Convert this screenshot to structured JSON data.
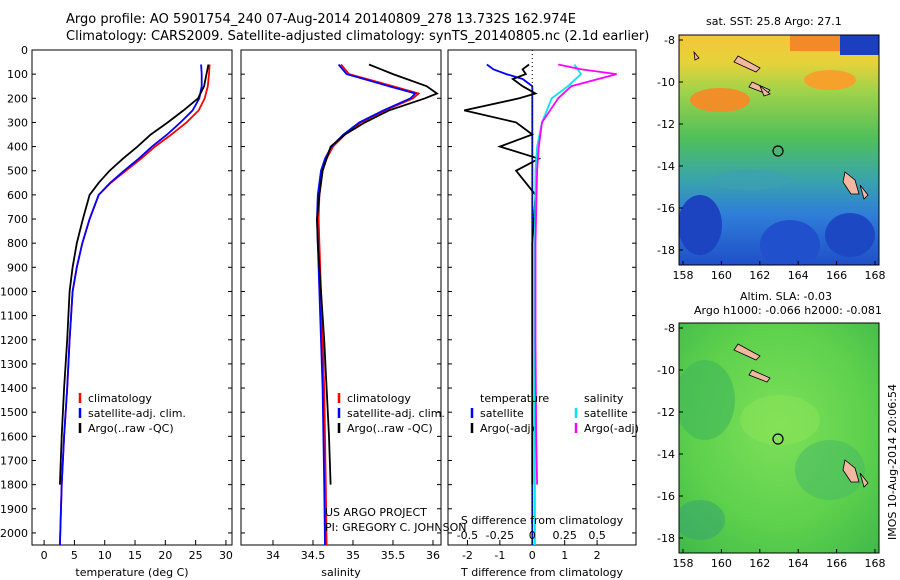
{
  "header": {
    "line1": "Argo profile: AO 5901754_240 07-Aug-2014 20140809_278 13.732S 162.974E",
    "line2": "Climatology: CARS2009. Satellite-adjusted climatology: synTS_20140805.nc (2.1d earlier)"
  },
  "maps": {
    "sst_title": "sat. SST: 25.8 Argo: 27.1",
    "sla_title_1": "Altim. SLA: -0.03",
    "sla_title_2": "Argo h1000: -0.066 h2000: -0.081",
    "lat_ticks": [
      "-8",
      "-10",
      "-12",
      "-14",
      "-16",
      "-18"
    ],
    "lon_ticks": [
      "158",
      "160",
      "162",
      "164",
      "166",
      "168"
    ]
  },
  "footer_stamp": "IMOS 10-Aug-2014 20:06:54",
  "colors": {
    "climatology": "#ff0000",
    "satellite": "#0000ff",
    "argo": "#000000",
    "satellite_salinity": "#00e5ee",
    "argo_salinity": "#ff00ff"
  },
  "chart_data": [
    {
      "type": "line",
      "panel": "temperature",
      "xlabel": "temperature (deg C)",
      "ylabel": "",
      "xlim": [
        -2,
        31
      ],
      "ylim": [
        2050,
        0
      ],
      "xticks": [
        "0",
        "5",
        "10",
        "15",
        "20",
        "25",
        "30"
      ],
      "yticks": [
        "0",
        "100",
        "200",
        "300",
        "400",
        "500",
        "600",
        "700",
        "800",
        "900",
        "1000",
        "1100",
        "1200",
        "1300",
        "1400",
        "1500",
        "1600",
        "1700",
        "1800",
        "1900",
        "2000"
      ],
      "legend": [
        "climatology",
        "satellite-adj. clim.",
        "Argo(..raw -QC)"
      ],
      "series": [
        {
          "name": "climatology",
          "color_key": "climatology",
          "x": [
            27.3,
            27.2,
            27.0,
            26.5,
            25.5,
            23.5,
            21.0,
            18.3,
            16.0,
            13.5,
            11.0,
            9.0,
            7.5,
            6.3,
            5.4,
            4.7,
            4.2,
            3.8,
            3.3,
            2.9,
            2.6
          ],
          "y": [
            60,
            100,
            150,
            200,
            250,
            300,
            350,
            400,
            450,
            500,
            550,
            600,
            700,
            800,
            900,
            1000,
            1200,
            1400,
            1600,
            1800,
            2050
          ]
        },
        {
          "name": "satellite-adj. clim.",
          "color_key": "satellite",
          "x": [
            25.9,
            26.0,
            26.0,
            25.6,
            24.5,
            22.5,
            20.3,
            17.8,
            15.6,
            13.2,
            10.9,
            9.0,
            7.5,
            6.3,
            5.4,
            4.7,
            4.2,
            3.8,
            3.3,
            2.9,
            2.6
          ],
          "y": [
            60,
            100,
            150,
            200,
            250,
            300,
            350,
            400,
            450,
            500,
            550,
            600,
            700,
            800,
            900,
            1000,
            1200,
            1400,
            1600,
            1800,
            2050
          ]
        },
        {
          "name": "Argo(..raw -QC)",
          "color_key": "argo",
          "x": [
            27.1,
            26.8,
            26.4,
            25.4,
            23.0,
            20.4,
            17.6,
            15.4,
            13.0,
            10.8,
            9.0,
            7.5,
            6.4,
            5.4,
            4.7,
            4.2,
            3.8,
            3.3,
            2.9,
            2.6
          ],
          "y": [
            60,
            100,
            150,
            200,
            250,
            300,
            350,
            400,
            450,
            500,
            550,
            600,
            700,
            800,
            900,
            1000,
            1200,
            1400,
            1600,
            1800
          ]
        }
      ]
    },
    {
      "type": "line",
      "panel": "salinity",
      "xlabel": "salinity",
      "ylabel": "",
      "xlim": [
        33.6,
        36.1
      ],
      "ylim": [
        2050,
        0
      ],
      "xticks": [
        "34",
        "34.5",
        "35",
        "35.5",
        "36"
      ],
      "legend": [
        "climatology",
        "satellite-adj. clim.",
        "Argo(..raw -QC)"
      ],
      "annotation": [
        "US ARGO PROJECT",
        "PI: GREGORY C. JOHNSON"
      ],
      "series": [
        {
          "name": "climatology",
          "color_key": "climatology",
          "x": [
            34.85,
            34.95,
            35.5,
            35.82,
            35.75,
            35.4,
            35.1,
            34.9,
            34.75,
            34.67,
            34.62,
            34.58,
            34.57,
            34.58,
            34.6,
            34.62,
            34.64,
            34.65,
            34.66,
            34.67
          ],
          "y": [
            60,
            100,
            150,
            180,
            200,
            250,
            300,
            350,
            400,
            450,
            500,
            600,
            700,
            800,
            1000,
            1200,
            1400,
            1600,
            1800,
            2050
          ]
        },
        {
          "name": "satellite-adj. clim.",
          "color_key": "satellite",
          "x": [
            34.82,
            34.92,
            35.45,
            35.78,
            35.72,
            35.38,
            35.08,
            34.88,
            34.73,
            34.65,
            34.6,
            34.56,
            34.55,
            34.56,
            34.58,
            34.6,
            34.62,
            34.63,
            34.64,
            34.65
          ],
          "y": [
            60,
            100,
            150,
            180,
            200,
            250,
            300,
            350,
            400,
            450,
            500,
            600,
            700,
            800,
            1000,
            1200,
            1400,
            1600,
            1800,
            2050
          ]
        },
        {
          "name": "Argo(..raw -QC)",
          "color_key": "argo",
          "x": [
            35.2,
            35.5,
            35.92,
            36.05,
            35.9,
            35.45,
            35.15,
            34.9,
            34.72,
            34.62,
            34.58,
            34.55,
            34.56,
            34.6,
            34.64,
            34.67,
            34.7,
            34.72
          ],
          "y": [
            60,
            100,
            150,
            180,
            200,
            250,
            300,
            350,
            400,
            500,
            600,
            700,
            800,
            1000,
            1200,
            1400,
            1600,
            1800
          ]
        }
      ]
    },
    {
      "type": "line",
      "panel": "differences",
      "xlabel": "T difference from climatology",
      "xlabel_top": "S difference from climatology",
      "xlim": [
        -2.6,
        3.2
      ],
      "ylim": [
        2050,
        0
      ],
      "xticks": [
        "-2",
        "-1",
        "0",
        "1",
        "2"
      ],
      "sticks": [
        "-0.5",
        "-0.25",
        "0",
        "0.25",
        "0.5"
      ],
      "legend_temperature": [
        "temperature",
        "satellite",
        "Argo(-adj)"
      ],
      "legend_salinity": [
        "salinity",
        "satellite",
        "Argo(-adj)"
      ],
      "series": [
        {
          "name": "satellite",
          "quantity": "temperature",
          "color_key": "satellite",
          "x": [
            -1.4,
            -1.2,
            -0.8,
            -0.3,
            0.0,
            0.0,
            0.0,
            0.0,
            0.0,
            0.0,
            0.0,
            0.0
          ],
          "y": [
            60,
            80,
            100,
            120,
            150,
            200,
            300,
            500,
            800,
            1200,
            1600,
            2050
          ]
        },
        {
          "name": "Argo(-adj)",
          "quantity": "temperature",
          "color_key": "argo",
          "x": [
            -0.1,
            -0.3,
            -0.2,
            -0.6,
            -0.3,
            0.1,
            -0.4,
            -2.1,
            -0.5,
            0.0,
            -1.0,
            0.2,
            -0.5,
            0.1,
            0.0,
            0.0,
            0.0
          ],
          "y": [
            60,
            80,
            100,
            120,
            150,
            180,
            200,
            250,
            300,
            350,
            400,
            450,
            500,
            600,
            800,
            1200,
            1800
          ]
        },
        {
          "name": "satellite",
          "quantity": "salinity",
          "color_key": "satellite_salinity",
          "x": [
            1.3,
            1.5,
            1.1,
            0.6,
            0.3,
            0.15,
            0.1,
            0.08,
            0.08,
            0.08,
            0.08
          ],
          "y": [
            60,
            100,
            150,
            200,
            300,
            400,
            500,
            800,
            1200,
            1600,
            2050
          ]
        },
        {
          "name": "Argo(-adj)",
          "quantity": "salinity",
          "color_key": "argo_salinity",
          "x": [
            0.8,
            1.5,
            2.6,
            1.2,
            0.8,
            0.3,
            0.2,
            0.15,
            0.1,
            0.1,
            0.12,
            0.15
          ],
          "y": [
            60,
            80,
            100,
            150,
            200,
            300,
            400,
            500,
            800,
            1200,
            1600,
            1800
          ]
        }
      ]
    }
  ]
}
